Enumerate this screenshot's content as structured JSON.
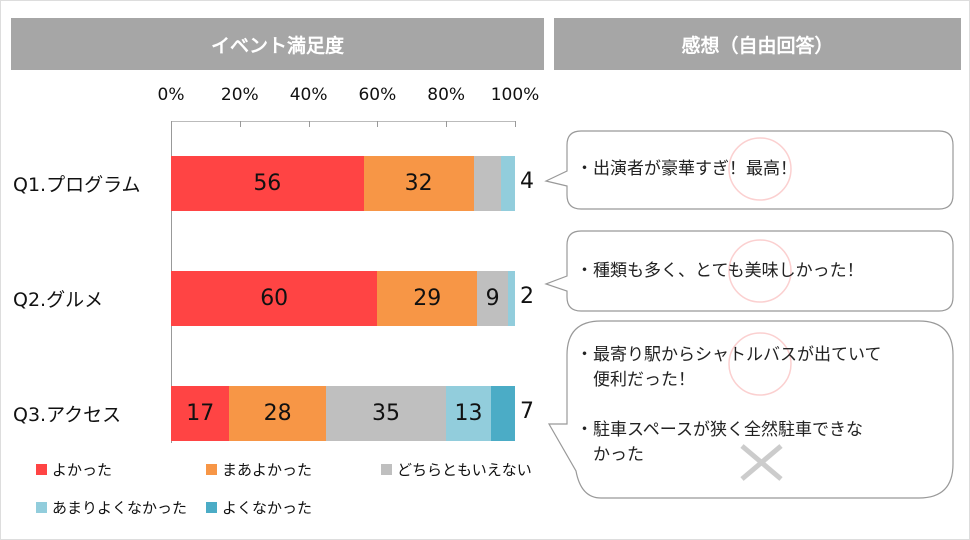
{
  "left_header": "イベント満足度",
  "right_header": "感想（自由回答）",
  "chart_data": {
    "type": "bar",
    "orientation": "horizontal-stacked-100",
    "categories": [
      "Q1.プログラム",
      "Q2.グルメ",
      "Q3.アクセス"
    ],
    "xticks": [
      "0%",
      "20%",
      "40%",
      "60%",
      "80%",
      "100%"
    ],
    "xlim": [
      0,
      100
    ],
    "legend_position": "bottom",
    "series": [
      {
        "name": "よかった",
        "color": "#ff4444",
        "values": [
          56,
          60,
          17
        ]
      },
      {
        "name": "まあよかった",
        "color": "#f79646",
        "values": [
          32,
          29,
          28
        ]
      },
      {
        "name": "どちらともいえない",
        "color": "#bfbfbf",
        "values": [
          8,
          9,
          35
        ]
      },
      {
        "name": "あまりよくなかった",
        "color": "#92cddc",
        "values": [
          4,
          2,
          13
        ]
      },
      {
        "name": "よくなかった",
        "color": "#4bacc6",
        "values": [
          0,
          0,
          7
        ]
      }
    ]
  },
  "comments": [
    {
      "lines": [
        "・出演者が豪華すぎ！最高！"
      ]
    },
    {
      "lines": [
        "・種類も多く、とても美味しかった！"
      ]
    },
    {
      "lines": [
        "・最寄り駅からシャトルバスが出ていて",
        "　便利だった！",
        "",
        "・駐車スペースが狭く全然駐車できな",
        "　かった"
      ]
    }
  ]
}
